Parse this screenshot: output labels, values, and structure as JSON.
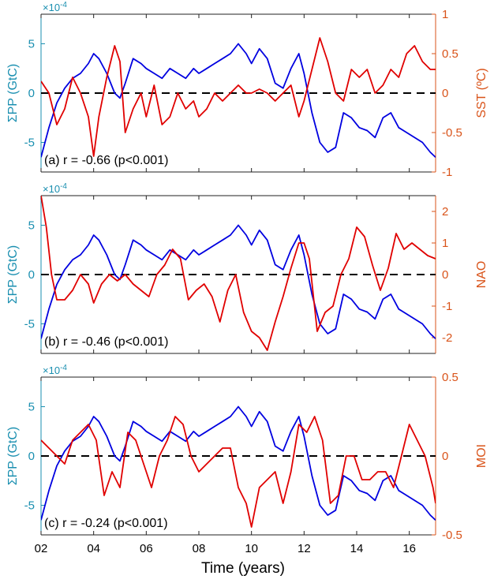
{
  "colors": {
    "left_axis": "#1a8fb0",
    "right_axis": "#d95319",
    "pp_line": "#0000e0",
    "index_line": "#e00000",
    "zero_line": "#000000",
    "text": "#000000"
  },
  "left_axis": {
    "label": "ΣPP (GtC)",
    "exponent": "×10",
    "exponent_power": "-4",
    "ylim": [
      -8,
      8
    ],
    "ticks": [
      -5,
      0,
      5
    ],
    "tick_labels": [
      "-5",
      "0",
      "5"
    ]
  },
  "x_axis": {
    "label": "Time (years)",
    "xlim": [
      2,
      17
    ],
    "ticks": [
      2,
      4,
      6,
      8,
      10,
      12,
      14,
      16
    ],
    "tick_labels": [
      "02",
      "04",
      "06",
      "08",
      "10",
      "12",
      "14",
      "16"
    ]
  },
  "chart_data": [
    {
      "type": "line",
      "panel": "a",
      "annotation": "(a) r = -0.66 (p<0.001)",
      "right_axis": {
        "label": "SST (ºC)",
        "ylim": [
          -1,
          1
        ],
        "ticks": [
          -1,
          -0.5,
          0,
          0.5,
          1
        ],
        "tick_labels": [
          "-1",
          "-0.5",
          "0",
          "0.5",
          "1"
        ]
      },
      "series": [
        {
          "axis": "left",
          "x": [
            2,
            2.3,
            2.6,
            2.9,
            3.2,
            3.5,
            3.8,
            4.0,
            4.2,
            4.5,
            4.8,
            5.0,
            5.2,
            5.5,
            5.8,
            6.0,
            6.3,
            6.6,
            6.9,
            7.2,
            7.5,
            7.8,
            8.0,
            8.3,
            8.6,
            8.9,
            9.2,
            9.5,
            9.8,
            10.0,
            10.3,
            10.6,
            10.9,
            11.2,
            11.5,
            11.8,
            12.0,
            12.3,
            12.6,
            12.9,
            13.2,
            13.5,
            13.8,
            14.1,
            14.4,
            14.7,
            15.0,
            15.3,
            15.6,
            15.9,
            16.2,
            16.5,
            16.8,
            17.0
          ],
          "y": [
            -6.5,
            -3.5,
            -1.0,
            0.5,
            1.5,
            2.0,
            3.0,
            4.0,
            3.5,
            2.0,
            0.0,
            -0.5,
            1.0,
            3.5,
            3.0,
            2.5,
            2.0,
            1.5,
            2.5,
            2.0,
            1.5,
            2.5,
            2.0,
            2.5,
            3.0,
            3.5,
            4.0,
            5.0,
            4.0,
            3.0,
            4.5,
            3.5,
            1.0,
            0.5,
            2.5,
            4.0,
            2.0,
            -2.0,
            -5.0,
            -6.0,
            -5.5,
            -2.0,
            -2.5,
            -3.5,
            -3.8,
            -4.5,
            -2.5,
            -2.0,
            -3.5,
            -4.0,
            -4.5,
            -5.0,
            -6.0,
            -6.5
          ]
        },
        {
          "axis": "right",
          "x": [
            2,
            2.3,
            2.6,
            2.9,
            3.2,
            3.5,
            3.8,
            4.0,
            4.2,
            4.5,
            4.8,
            5.0,
            5.2,
            5.5,
            5.8,
            6.0,
            6.3,
            6.6,
            6.9,
            7.2,
            7.5,
            7.8,
            8.0,
            8.3,
            8.6,
            8.9,
            9.2,
            9.5,
            9.8,
            10.0,
            10.3,
            10.6,
            10.9,
            11.2,
            11.5,
            11.8,
            12.0,
            12.3,
            12.6,
            12.9,
            13.2,
            13.5,
            13.8,
            14.1,
            14.4,
            14.7,
            15.0,
            15.3,
            15.6,
            15.9,
            16.2,
            16.5,
            16.8,
            17.0
          ],
          "y": [
            0.15,
            0.0,
            -0.4,
            -0.2,
            0.2,
            0.0,
            -0.3,
            -0.8,
            -0.3,
            0.2,
            0.6,
            0.4,
            -0.5,
            -0.2,
            0.0,
            -0.3,
            0.1,
            -0.4,
            -0.3,
            0.0,
            -0.2,
            -0.1,
            -0.3,
            -0.2,
            0.0,
            -0.1,
            0.0,
            0.1,
            0.0,
            0.0,
            0.05,
            0.0,
            -0.1,
            0.0,
            0.1,
            -0.3,
            -0.1,
            0.3,
            0.7,
            0.4,
            0.0,
            -0.1,
            0.3,
            0.2,
            0.3,
            0.0,
            0.1,
            0.3,
            0.2,
            0.5,
            0.6,
            0.4,
            0.3,
            0.3
          ]
        }
      ]
    },
    {
      "type": "line",
      "panel": "b",
      "annotation": "(b) r = -0.46 (p<0.001)",
      "right_axis": {
        "label": "NAO",
        "ylim": [
          -2.5,
          2.5
        ],
        "ticks": [
          -2,
          -1,
          0,
          1,
          2
        ],
        "tick_labels": [
          "-2",
          "-1",
          "0",
          "1",
          "2"
        ]
      },
      "series": [
        {
          "axis": "left",
          "x": [
            2,
            2.3,
            2.6,
            2.9,
            3.2,
            3.5,
            3.8,
            4.0,
            4.2,
            4.5,
            4.8,
            5.0,
            5.2,
            5.5,
            5.8,
            6.0,
            6.3,
            6.6,
            6.9,
            7.2,
            7.5,
            7.8,
            8.0,
            8.3,
            8.6,
            8.9,
            9.2,
            9.5,
            9.8,
            10.0,
            10.3,
            10.6,
            10.9,
            11.2,
            11.5,
            11.8,
            12.0,
            12.3,
            12.6,
            12.9,
            13.2,
            13.5,
            13.8,
            14.1,
            14.4,
            14.7,
            15.0,
            15.3,
            15.6,
            15.9,
            16.2,
            16.5,
            16.8,
            17.0
          ],
          "y": [
            -6.5,
            -3.5,
            -1.0,
            0.5,
            1.5,
            2.0,
            3.0,
            4.0,
            3.5,
            2.0,
            0.0,
            -0.5,
            1.0,
            3.5,
            3.0,
            2.5,
            2.0,
            1.5,
            2.5,
            2.0,
            1.5,
            2.5,
            2.0,
            2.5,
            3.0,
            3.5,
            4.0,
            5.0,
            4.0,
            3.0,
            4.5,
            3.5,
            1.0,
            0.5,
            2.5,
            4.0,
            2.0,
            -2.0,
            -5.0,
            -6.0,
            -5.5,
            -2.0,
            -2.5,
            -3.5,
            -3.8,
            -4.5,
            -2.5,
            -2.0,
            -3.5,
            -4.0,
            -4.5,
            -5.0,
            -6.0,
            -6.5
          ]
        },
        {
          "axis": "right",
          "x": [
            2,
            2.2,
            2.4,
            2.6,
            2.9,
            3.2,
            3.5,
            3.8,
            4.0,
            4.3,
            4.6,
            4.9,
            5.2,
            5.5,
            5.8,
            6.1,
            6.4,
            6.7,
            7.0,
            7.3,
            7.6,
            7.9,
            8.2,
            8.5,
            8.8,
            9.1,
            9.4,
            9.7,
            10.0,
            10.3,
            10.6,
            10.9,
            11.2,
            11.5,
            11.8,
            12.0,
            12.2,
            12.5,
            12.8,
            13.1,
            13.4,
            13.7,
            14.0,
            14.3,
            14.6,
            14.9,
            15.2,
            15.5,
            15.8,
            16.1,
            16.4,
            16.7,
            17.0
          ],
          "y": [
            2.5,
            1.5,
            0.0,
            -0.8,
            -0.8,
            -0.5,
            0.0,
            -0.3,
            -0.9,
            -0.3,
            0.0,
            -0.2,
            0.0,
            -0.3,
            -0.5,
            -0.7,
            0.0,
            0.3,
            0.8,
            0.5,
            -0.8,
            -0.5,
            -0.3,
            -0.7,
            -1.5,
            -0.5,
            0.0,
            -1.2,
            -1.8,
            -2.0,
            -2.4,
            -1.5,
            -0.7,
            0.2,
            1.0,
            1.0,
            0.5,
            -1.8,
            -1.2,
            -1.0,
            0.0,
            0.5,
            1.5,
            1.2,
            0.3,
            -0.5,
            0.2,
            1.3,
            0.8,
            1.0,
            0.8,
            0.6,
            0.5
          ]
        }
      ]
    },
    {
      "type": "line",
      "panel": "c",
      "annotation": "(c) r = -0.24 (p<0.001)",
      "right_axis": {
        "label": "MOI",
        "ylim": [
          -0.5,
          0.5
        ],
        "ticks": [
          -0.5,
          0,
          0.5
        ],
        "tick_labels": [
          "-0.5",
          "0",
          "0.5"
        ]
      },
      "series": [
        {
          "axis": "left",
          "x": [
            2,
            2.3,
            2.6,
            2.9,
            3.2,
            3.5,
            3.8,
            4.0,
            4.2,
            4.5,
            4.8,
            5.0,
            5.2,
            5.5,
            5.8,
            6.0,
            6.3,
            6.6,
            6.9,
            7.2,
            7.5,
            7.8,
            8.0,
            8.3,
            8.6,
            8.9,
            9.2,
            9.5,
            9.8,
            10.0,
            10.3,
            10.6,
            10.9,
            11.2,
            11.5,
            11.8,
            12.0,
            12.3,
            12.6,
            12.9,
            13.2,
            13.5,
            13.8,
            14.1,
            14.4,
            14.7,
            15.0,
            15.3,
            15.6,
            15.9,
            16.2,
            16.5,
            16.8,
            17.0
          ],
          "y": [
            -6.5,
            -3.5,
            -1.0,
            0.5,
            1.5,
            2.0,
            3.0,
            4.0,
            3.5,
            2.0,
            0.0,
            -0.5,
            1.0,
            3.5,
            3.0,
            2.5,
            2.0,
            1.5,
            2.5,
            2.0,
            1.5,
            2.5,
            2.0,
            2.5,
            3.0,
            3.5,
            4.0,
            5.0,
            4.0,
            3.0,
            4.5,
            3.5,
            1.0,
            0.5,
            2.5,
            4.0,
            2.0,
            -2.0,
            -5.0,
            -6.0,
            -5.5,
            -2.0,
            -2.5,
            -3.5,
            -3.8,
            -4.5,
            -2.5,
            -2.0,
            -3.5,
            -4.0,
            -4.5,
            -5.0,
            -6.0,
            -6.5
          ]
        },
        {
          "axis": "right",
          "x": [
            2,
            2.3,
            2.6,
            2.9,
            3.2,
            3.5,
            3.8,
            4.1,
            4.4,
            4.7,
            5.0,
            5.3,
            5.6,
            5.9,
            6.2,
            6.5,
            6.8,
            7.1,
            7.4,
            7.7,
            8.0,
            8.3,
            8.6,
            8.9,
            9.2,
            9.5,
            9.8,
            10.0,
            10.3,
            10.6,
            10.9,
            11.2,
            11.5,
            11.8,
            12.1,
            12.4,
            12.7,
            13.0,
            13.3,
            13.6,
            13.9,
            14.2,
            14.5,
            14.8,
            15.1,
            15.4,
            15.7,
            16.0,
            16.3,
            16.6,
            16.9,
            17.0
          ],
          "y": [
            0.1,
            0.05,
            0.0,
            -0.05,
            0.1,
            0.15,
            0.2,
            0.1,
            -0.25,
            -0.1,
            -0.2,
            0.15,
            0.1,
            -0.05,
            -0.2,
            0.0,
            0.1,
            0.25,
            0.2,
            0.0,
            -0.1,
            -0.05,
            0.0,
            0.05,
            0.05,
            -0.2,
            -0.3,
            -0.45,
            -0.2,
            -0.15,
            -0.1,
            -0.3,
            -0.1,
            0.2,
            0.15,
            0.25,
            0.1,
            -0.3,
            -0.25,
            0.0,
            0.0,
            -0.15,
            -0.15,
            -0.1,
            -0.1,
            -0.2,
            0.0,
            0.2,
            0.1,
            0.0,
            -0.2,
            -0.3
          ]
        }
      ]
    }
  ]
}
